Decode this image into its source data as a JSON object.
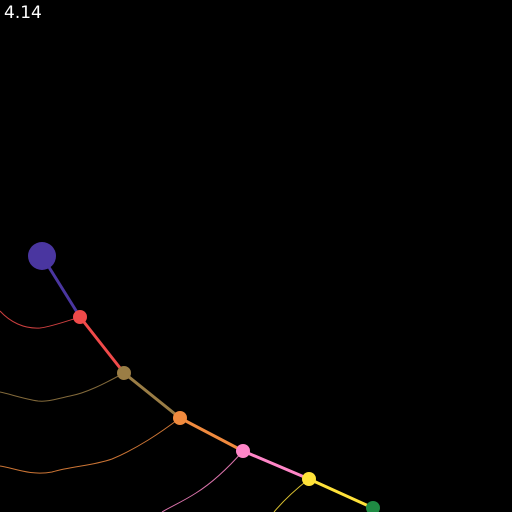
{
  "hud": {
    "time": "4.14"
  },
  "colors": {
    "background": "#000000",
    "text": "#ffffff"
  },
  "pendulum": {
    "anchor": {
      "name": "anchor-bob",
      "color": "#4a36a0"
    },
    "segments": [
      {
        "name": "segment-1",
        "color": "#4a36a0"
      },
      {
        "name": "segment-2",
        "color": "#f04a4a"
      },
      {
        "name": "segment-3",
        "color": "#9a7d45"
      },
      {
        "name": "segment-4",
        "color": "#f08a3e"
      },
      {
        "name": "segment-5",
        "color": "#ff86c8"
      },
      {
        "name": "segment-6",
        "color": "#ffe23a"
      }
    ],
    "bobs": [
      {
        "name": "bob-1",
        "color": "#f04a4a"
      },
      {
        "name": "bob-2",
        "color": "#9a7d45"
      },
      {
        "name": "bob-3",
        "color": "#f08a3e"
      },
      {
        "name": "bob-4",
        "color": "#ff86c8"
      },
      {
        "name": "bob-5",
        "color": "#ffe23a"
      },
      {
        "name": "bob-6",
        "color": "#1f8a43"
      }
    ],
    "trails": [
      {
        "name": "trail-bob-1",
        "color": "#f04a4a"
      },
      {
        "name": "trail-bob-2",
        "color": "#9a7d45"
      },
      {
        "name": "trail-bob-3",
        "color": "#f08a3e"
      },
      {
        "name": "trail-bob-4",
        "color": "#ff86c8"
      },
      {
        "name": "trail-bob-5",
        "color": "#ffe23a"
      }
    ]
  }
}
